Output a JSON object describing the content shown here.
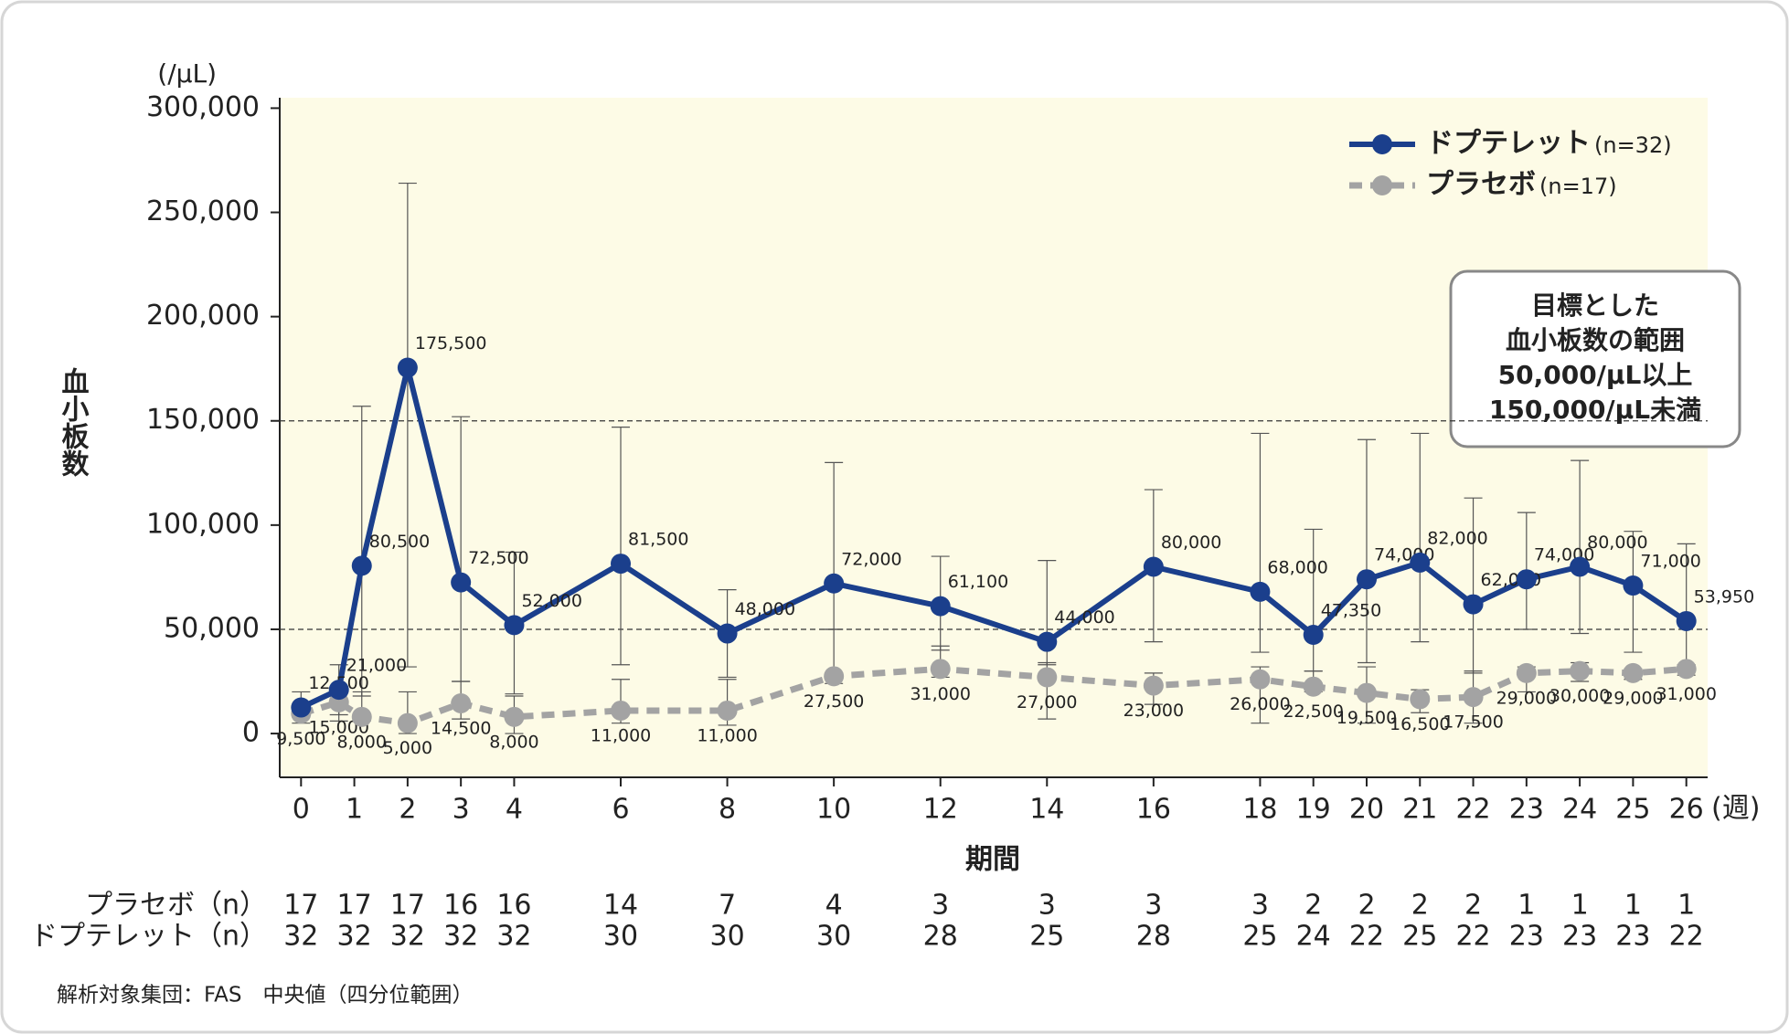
{
  "chart_data": {
    "type": "line",
    "y_unit": "(/μL)",
    "x_unit": "(週)",
    "ylabel": "血小板数",
    "xlabel": "期間",
    "x": [
      0,
      0.71,
      1.14,
      2,
      3,
      4,
      6,
      8,
      10,
      12,
      14,
      16,
      18,
      19,
      20,
      21,
      22,
      23,
      24,
      25,
      26
    ],
    "xlim": [
      -0.4,
      26.4
    ],
    "xticks": [
      0,
      1,
      2,
      3,
      4,
      6,
      8,
      10,
      12,
      14,
      16,
      18,
      19,
      20,
      21,
      22,
      23,
      24,
      25,
      26
    ],
    "ylim": [
      -21000,
      305000
    ],
    "yticks": [
      0,
      {
        "value": 50000,
        "label": "50,000"
      },
      {
        "value": 100000,
        "label": "100,000"
      },
      {
        "value": 150000,
        "label": "150,000"
      },
      {
        "value": 200000,
        "label": "200,000"
      },
      {
        "value": 250000,
        "label": "250,000"
      },
      {
        "value": 300000,
        "label": "300,000"
      }
    ],
    "reference_lines": [
      50000,
      150000
    ],
    "series": [
      {
        "name": "ドプテレット",
        "legend_n": "(n=32)",
        "color": "#1b3f8c",
        "dashed": false,
        "values": [
          12500,
          21000,
          80500,
          175500,
          72500,
          52000,
          81500,
          48000,
          72000,
          61100,
          44000,
          80000,
          68000,
          47350,
          74000,
          82000,
          62000,
          74000,
          80000,
          71000,
          53950
        ],
        "value_labels": [
          "12,500",
          "21,000",
          "80,500",
          "175,500",
          "72,500",
          "52,000",
          "81,500",
          "48,000",
          "72,000",
          "61,100",
          "44,000",
          "80,000",
          "68,000",
          "47,350",
          "74,000",
          "82,000",
          "62,000",
          "74,000",
          "80,000",
          "71,000",
          "53,950"
        ],
        "low": [
          8000,
          9000,
          18000,
          32000,
          25000,
          19000,
          33000,
          27000,
          50000,
          40000,
          33000,
          44000,
          39000,
          30000,
          34000,
          44000,
          29000,
          50000,
          48000,
          39000,
          30000
        ],
        "high": [
          20000,
          33000,
          157000,
          264000,
          152000,
          87000,
          147000,
          69000,
          130000,
          85000,
          83000,
          117000,
          144000,
          98000,
          141000,
          144000,
          113000,
          106000,
          131000,
          97000,
          91000
        ]
      },
      {
        "name": "プラセボ",
        "legend_n": "(n=17)",
        "color": "#a3a3a3",
        "dashed": true,
        "values": [
          9500,
          15000,
          8000,
          5000,
          14500,
          8000,
          11000,
          11000,
          27500,
          31000,
          27000,
          23000,
          26000,
          22500,
          19500,
          16500,
          17500,
          29000,
          30000,
          29000,
          31000
        ],
        "value_labels": [
          "9,500",
          "15,000",
          "8,000",
          "5,000",
          "14,500",
          "8,000",
          "11,000",
          "11,000",
          "27,500",
          "31,000",
          "27,000",
          "23,000",
          "26,000",
          "22,500",
          "19,500",
          "16,500",
          "17,500",
          "29,000",
          "30,000",
          "29,000",
          "31,000"
        ],
        "low": [
          5000,
          6000,
          6000,
          0,
          7000,
          0,
          5000,
          4000,
          24000,
          27000,
          7000,
          14000,
          5000,
          20000,
          5000,
          10000,
          5000,
          20000,
          25000,
          26000,
          28000
        ],
        "high": [
          14000,
          22000,
          20000,
          20000,
          25000,
          18000,
          26000,
          26000,
          50000,
          42000,
          34000,
          29000,
          32000,
          30000,
          32000,
          21000,
          30000,
          32000,
          34000,
          31000,
          33000
        ]
      }
    ],
    "annotation": [
      "目標とした",
      "血小板数の範囲",
      "50,000/μL以上",
      "150,000/μL未満"
    ],
    "n_table": [
      {
        "label": "プラセボ（n）",
        "values": [
          17,
          17,
          17,
          16,
          16,
          14,
          7,
          4,
          3,
          3,
          3,
          3,
          2,
          2,
          2,
          2,
          1,
          1,
          1,
          1
        ]
      },
      {
        "label": "ドプテレット（n）",
        "values": [
          32,
          32,
          32,
          32,
          32,
          30,
          30,
          30,
          28,
          25,
          28,
          25,
          24,
          22,
          25,
          22,
          23,
          23,
          23,
          22
        ]
      }
    ],
    "footnote": "解析対象集団：FAS　中央値（四分位範囲）"
  }
}
